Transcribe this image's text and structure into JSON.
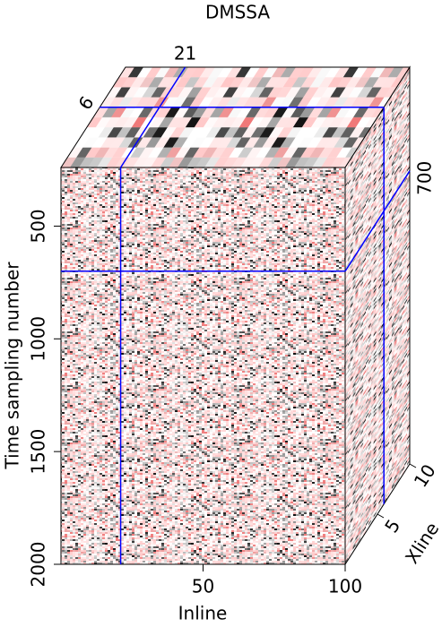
{
  "chart_data": {
    "type": "cube",
    "title": "DMSSA",
    "x_label": "Inline",
    "y_label": "Time sampling number",
    "z_label": "Xline",
    "xlim": [
      0,
      100
    ],
    "xticks": [
      50,
      100
    ],
    "ylim": [
      240,
      2000
    ],
    "yticks": [
      500,
      1000,
      1500,
      2000
    ],
    "zlim": [
      0,
      10
    ],
    "zticks": [
      5,
      10
    ],
    "slices": {
      "inline": 21,
      "xline": 6,
      "time": 700
    },
    "slice_color": "#0000ff"
  }
}
